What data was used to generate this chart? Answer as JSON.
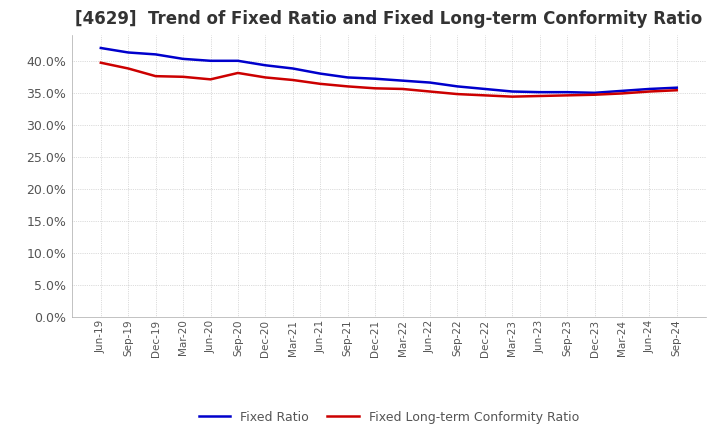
{
  "title": "[4629]  Trend of Fixed Ratio and Fixed Long-term Conformity Ratio",
  "title_fontsize": 12,
  "background_color": "#ffffff",
  "plot_bg_color": "#ffffff",
  "grid_color": "#aaaaaa",
  "ylim": [
    0,
    0.44
  ],
  "yticks": [
    0.0,
    0.05,
    0.1,
    0.15,
    0.2,
    0.25,
    0.3,
    0.35,
    0.4
  ],
  "x_labels": [
    "Jun-19",
    "Sep-19",
    "Dec-19",
    "Mar-20",
    "Jun-20",
    "Sep-20",
    "Dec-20",
    "Mar-21",
    "Jun-21",
    "Sep-21",
    "Dec-21",
    "Mar-22",
    "Jun-22",
    "Sep-22",
    "Dec-22",
    "Mar-23",
    "Jun-23",
    "Sep-23",
    "Dec-23",
    "Mar-24",
    "Jun-24",
    "Sep-24"
  ],
  "fixed_ratio": [
    0.42,
    0.413,
    0.41,
    0.403,
    0.4,
    0.4,
    0.393,
    0.388,
    0.38,
    0.374,
    0.372,
    0.369,
    0.366,
    0.36,
    0.356,
    0.352,
    0.351,
    0.351,
    0.35,
    0.353,
    0.356,
    0.358
  ],
  "fixed_lt_ratio": [
    0.397,
    0.388,
    0.376,
    0.375,
    0.371,
    0.381,
    0.374,
    0.37,
    0.364,
    0.36,
    0.357,
    0.356,
    0.352,
    0.348,
    0.346,
    0.344,
    0.345,
    0.346,
    0.347,
    0.349,
    0.352,
    0.354
  ],
  "line_color_fixed": "#0000cc",
  "line_color_lt": "#cc0000",
  "legend_fixed": "Fixed Ratio",
  "legend_lt": "Fixed Long-term Conformity Ratio",
  "line_width": 1.8
}
